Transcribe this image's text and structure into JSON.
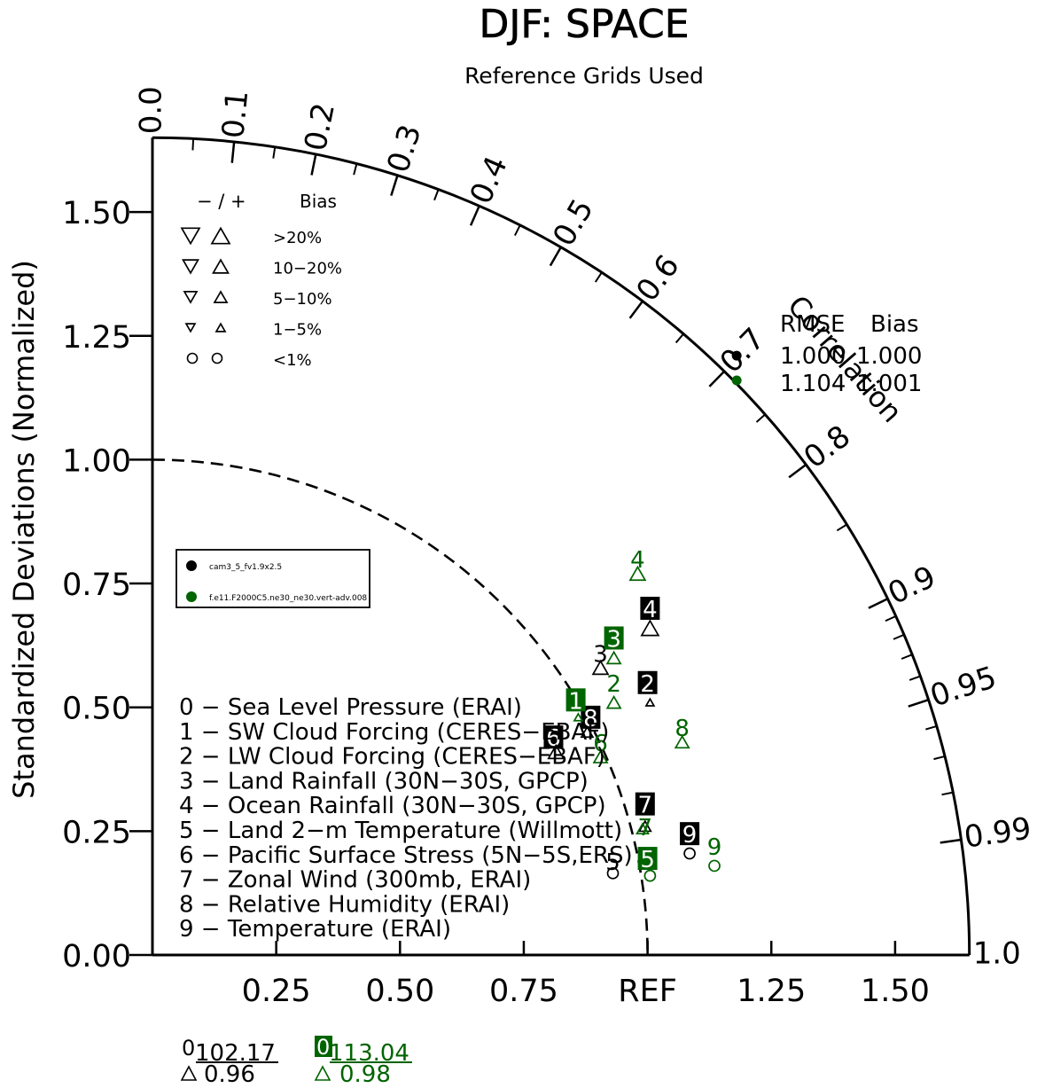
{
  "chart_data": {
    "type": "scatter",
    "subtype": "taylor-diagram",
    "title": "DJF: SPACE",
    "subtitle": "Reference Grids Used",
    "ylabel": "Standardized Deviations (Normalized)",
    "arc_label": "Correlation",
    "xlim": [
      0,
      1.65
    ],
    "ylim": [
      0,
      1.65
    ],
    "grid": false,
    "ref_circle_radius": 1.0,
    "x_ticks": [
      {
        "v": 0.25,
        "label": "0.25"
      },
      {
        "v": 0.5,
        "label": "0.50"
      },
      {
        "v": 0.75,
        "label": "0.75"
      },
      {
        "v": 1.0,
        "label": "REF"
      },
      {
        "v": 1.25,
        "label": "1.25"
      },
      {
        "v": 1.5,
        "label": "1.50"
      }
    ],
    "y_ticks": [
      {
        "v": 0.0,
        "label": "0.00"
      },
      {
        "v": 0.25,
        "label": "0.25"
      },
      {
        "v": 0.5,
        "label": "0.50"
      },
      {
        "v": 0.75,
        "label": "0.75"
      },
      {
        "v": 1.0,
        "label": "1.00"
      },
      {
        "v": 1.25,
        "label": "1.25"
      },
      {
        "v": 1.5,
        "label": "1.50"
      }
    ],
    "corr_labels": [
      "0.0",
      "0.1",
      "0.2",
      "0.3",
      "0.4",
      "0.5",
      "0.6",
      "0.7",
      "0.8",
      "0.9",
      "0.95",
      "0.99",
      "1.0"
    ],
    "corr_minor_ticks": [
      0.05,
      0.15,
      0.25,
      0.35,
      0.45,
      0.55,
      0.65,
      0.75,
      0.85,
      0.91,
      0.92,
      0.93,
      0.94,
      0.96,
      0.97,
      0.98
    ],
    "bias_legend": {
      "header_signs": "− / +",
      "header_bias": "Bias",
      "rows": [
        ">20%",
        "10−20%",
        "5−10%",
        "1−5%",
        "<1%"
      ]
    },
    "series_legend": [
      {
        "name": "cam3_5_fv1.9x2.5",
        "color": "#000000"
      },
      {
        "name": "f.e11.F2000C5.ne30_ne30.vert-adv.008",
        "color": "#006400"
      }
    ],
    "variables": [
      "0 − Sea Level Pressure (ERAI)",
      "1 − SW Cloud Forcing (CERES−EBAF)",
      "2 − LW Cloud Forcing (CERES−EBAF)",
      "3 − Land Rainfall (30N−30S, GPCP)",
      "4 − Ocean Rainfall (30N−30S, GPCP)",
      "5 − Land 2−m Temperature (Willmott)",
      "6 − Pacific Surface Stress (5N−5S,ERS)",
      "7 − Zonal Wind (300mb, ERAI)",
      "8 − Relative Humidity (ERAI)",
      "9 − Temperature (ERAI)"
    ],
    "rmse_table": {
      "header_rmse": "RMSE",
      "header_bias": "Bias",
      "rows": [
        {
          "rmse": "1.000",
          "bias": "1.000",
          "color": "#000000"
        },
        {
          "rmse": "1.104",
          "bias": "1.001",
          "color": "#006400"
        }
      ],
      "points": [
        {
          "x": 1.18,
          "y": 1.21,
          "color": "#000000"
        },
        {
          "x": 1.18,
          "y": 1.16,
          "color": "#006400"
        }
      ]
    },
    "series": [
      {
        "name": "cam3_5_fv1.9x2.5",
        "color": "#000000",
        "points": [
          {
            "id": "2",
            "x": 1.0,
            "y": 0.55,
            "boxed": true,
            "sym": "up",
            "sym_size": 9,
            "sx": 1.005,
            "sy": 0.51
          },
          {
            "id": "3",
            "x": 0.905,
            "y": 0.61,
            "boxed": false,
            "sym": "up",
            "sym_size": 17,
            "sx": 0.905,
            "sy": 0.58
          },
          {
            "id": "4",
            "x": 1.005,
            "y": 0.7,
            "boxed": true,
            "sym": "up",
            "sym_size": 19,
            "sx": 1.005,
            "sy": 0.66
          },
          {
            "id": "6",
            "x": 0.81,
            "y": 0.44,
            "boxed": true,
            "sym": "up",
            "sym_size": 17,
            "sx": 0.815,
            "sy": 0.41
          },
          {
            "id": "7",
            "x": 0.995,
            "y": 0.305,
            "boxed": true,
            "sym": "up",
            "sym_size": 13,
            "sx": 0.995,
            "sy": 0.26
          },
          {
            "id": "8",
            "x": 0.885,
            "y": 0.48,
            "boxed": true,
            "sym": "up",
            "sym_size": 13,
            "sx": 0.878,
            "sy": 0.45
          },
          {
            "id": "9",
            "x": 1.085,
            "y": 0.245,
            "boxed": true,
            "sym": "circle",
            "sym_size": 6,
            "sx": 1.085,
            "sy": 0.205
          },
          {
            "id": "5",
            "x": 0.93,
            "y": 0.19,
            "boxed": false,
            "sym": "circle",
            "sym_size": 6,
            "sx": 0.93,
            "sy": 0.165
          }
        ]
      },
      {
        "name": "f.e11.F2000C5.ne30_ne30.vert-adv.008",
        "color": "#006400",
        "points": [
          {
            "id": "1",
            "x": 0.855,
            "y": 0.515,
            "boxed": true,
            "sym": "up",
            "sym_size": 9,
            "sx": 0.86,
            "sy": 0.48
          },
          {
            "id": "2",
            "x": 0.932,
            "y": 0.55,
            "boxed": false,
            "sym": "up",
            "sym_size": 15,
            "sx": 0.932,
            "sy": 0.51
          },
          {
            "id": "3",
            "x": 0.932,
            "y": 0.64,
            "boxed": true,
            "sym": "up",
            "sym_size": 15,
            "sx": 0.932,
            "sy": 0.6
          },
          {
            "id": "4",
            "x": 0.98,
            "y": 0.8,
            "boxed": false,
            "sym": "up",
            "sym_size": 17,
            "sx": 0.98,
            "sy": 0.77
          },
          {
            "id": "5",
            "x": 1.0,
            "y": 0.195,
            "boxed": true,
            "sym": "circle",
            "sym_size": 6,
            "sx": 1.005,
            "sy": 0.16
          },
          {
            "id": "6",
            "x": 0.905,
            "y": 0.43,
            "boxed": false,
            "sym": "up",
            "sym_size": 15,
            "sx": 0.905,
            "sy": 0.4
          },
          {
            "id": "7",
            "x": 0.995,
            "y": 0.26,
            "boxed": false,
            "sym": "up",
            "sym_size": 13,
            "sx": 0.99,
            "sy": 0.255
          },
          {
            "id": "8",
            "x": 1.07,
            "y": 0.46,
            "boxed": false,
            "sym": "up",
            "sym_size": 15,
            "sx": 1.07,
            "sy": 0.43
          },
          {
            "id": "9",
            "x": 1.135,
            "y": 0.22,
            "boxed": false,
            "sym": "circle",
            "sym_size": 6,
            "sx": 1.135,
            "sy": 0.18
          }
        ]
      }
    ],
    "footer": [
      {
        "color": "#000000",
        "marker": "0",
        "boxed": false,
        "value1": "102.17",
        "value2": "0.96"
      },
      {
        "color": "#006400",
        "marker": "0",
        "boxed": true,
        "value1": "113.04",
        "value2": "0.98"
      }
    ]
  }
}
